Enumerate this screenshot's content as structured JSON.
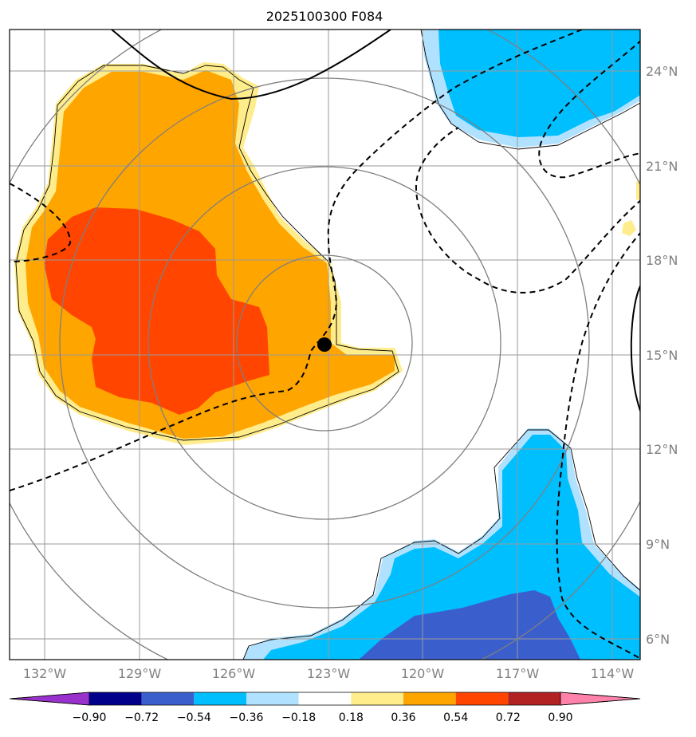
{
  "title": "2025100300 F084",
  "lon_labels": [
    "132°W",
    "129°W",
    "126°W",
    "123°W",
    "120°W",
    "117°W",
    "114°W"
  ],
  "lat_labels": [
    "24°N",
    "21°N",
    "18°N",
    "15°N",
    "12°N",
    "9°N",
    "6°N"
  ],
  "colorbar": {
    "labels": [
      "−0.90",
      "−0.72",
      "−0.54",
      "−0.36",
      "−0.18",
      "0.18",
      "0.36",
      "0.54",
      "0.72",
      "0.90"
    ],
    "colors": [
      "#9932cc",
      "#00008b",
      "#3a5fcd",
      "#00bfff",
      "#b0e2ff",
      "#ffffff",
      "#ffec8b",
      "#ffa500",
      "#ff4500",
      "#b22222",
      "#ff82ab"
    ]
  },
  "fill_colors": {
    "light_yellow": "#ffec8b",
    "orange": "#ffa500",
    "red_orange": "#ff4500",
    "light_blue": "#b0e2ff",
    "deep_sky_blue": "#00bfff",
    "royal_blue": "#3a5fcd"
  },
  "storm_center": {
    "lon": "123°W",
    "lat": "15.3°N"
  }
}
